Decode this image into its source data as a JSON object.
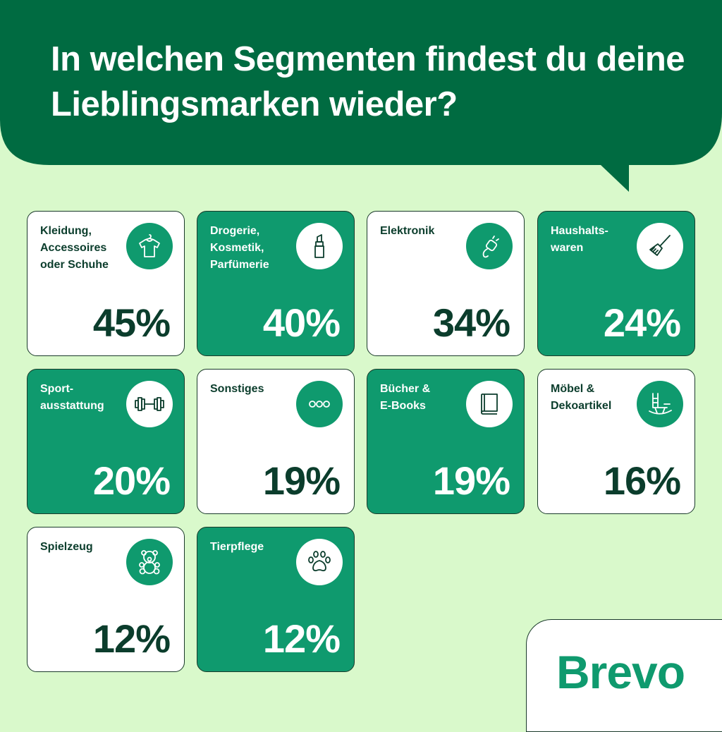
{
  "title": "In welchen Segmenten findest du deine Lieblingsmarken wieder?",
  "colors": {
    "background": "#d9f9cb",
    "bubble": "#006b41",
    "tile_dark": "#0f9a6e",
    "tile_light": "#ffffff",
    "text_dark": "#0b3d2c",
    "brand": "#0f9a6e"
  },
  "chart_data": {
    "type": "table",
    "unit": "%",
    "categories": [
      "Kleidung, Accessoires oder Schuhe",
      "Drogerie, Kosmetik, Parfümerie",
      "Elektronik",
      "Haushaltswaren",
      "Sportausstattung",
      "Sonstiges",
      "Bücher & E-Books",
      "Möbel & Dekoartikel",
      "Spielzeug",
      "Tierpflege"
    ],
    "values": [
      45,
      40,
      34,
      24,
      20,
      19,
      19,
      16,
      12,
      12
    ]
  },
  "tiles": [
    {
      "label": "Kleidung,\nAccessoires\noder Schuhe",
      "value_text": "45%",
      "icon": "shirt-icon",
      "style": "light"
    },
    {
      "label": "Drogerie,\nKosmetik,\nParfümerie",
      "value_text": "40%",
      "icon": "lipstick-icon",
      "style": "dark"
    },
    {
      "label": "Elektronik",
      "value_text": "34%",
      "icon": "plug-icon",
      "style": "light"
    },
    {
      "label": "Haushalts-\nwaren",
      "value_text": "24%",
      "icon": "broom-icon",
      "style": "dark"
    },
    {
      "label": "Sport-\nausstattung",
      "value_text": "20%",
      "icon": "dumbbell-icon",
      "style": "dark"
    },
    {
      "label": "Sonstiges",
      "value_text": "19%",
      "icon": "more-icon",
      "style": "light"
    },
    {
      "label": "Bücher &\nE-Books",
      "value_text": "19%",
      "icon": "book-icon",
      "style": "dark"
    },
    {
      "label": "Möbel &\nDekoartikel",
      "value_text": "16%",
      "icon": "rocking-chair-icon",
      "style": "light"
    },
    {
      "label": "Spielzeug",
      "value_text": "12%",
      "icon": "teddy-bear-icon",
      "style": "light"
    },
    {
      "label": "Tierpflege",
      "value_text": "12%",
      "icon": "paw-icon",
      "style": "dark"
    }
  ],
  "brand": {
    "logo_text": "Brevo"
  }
}
